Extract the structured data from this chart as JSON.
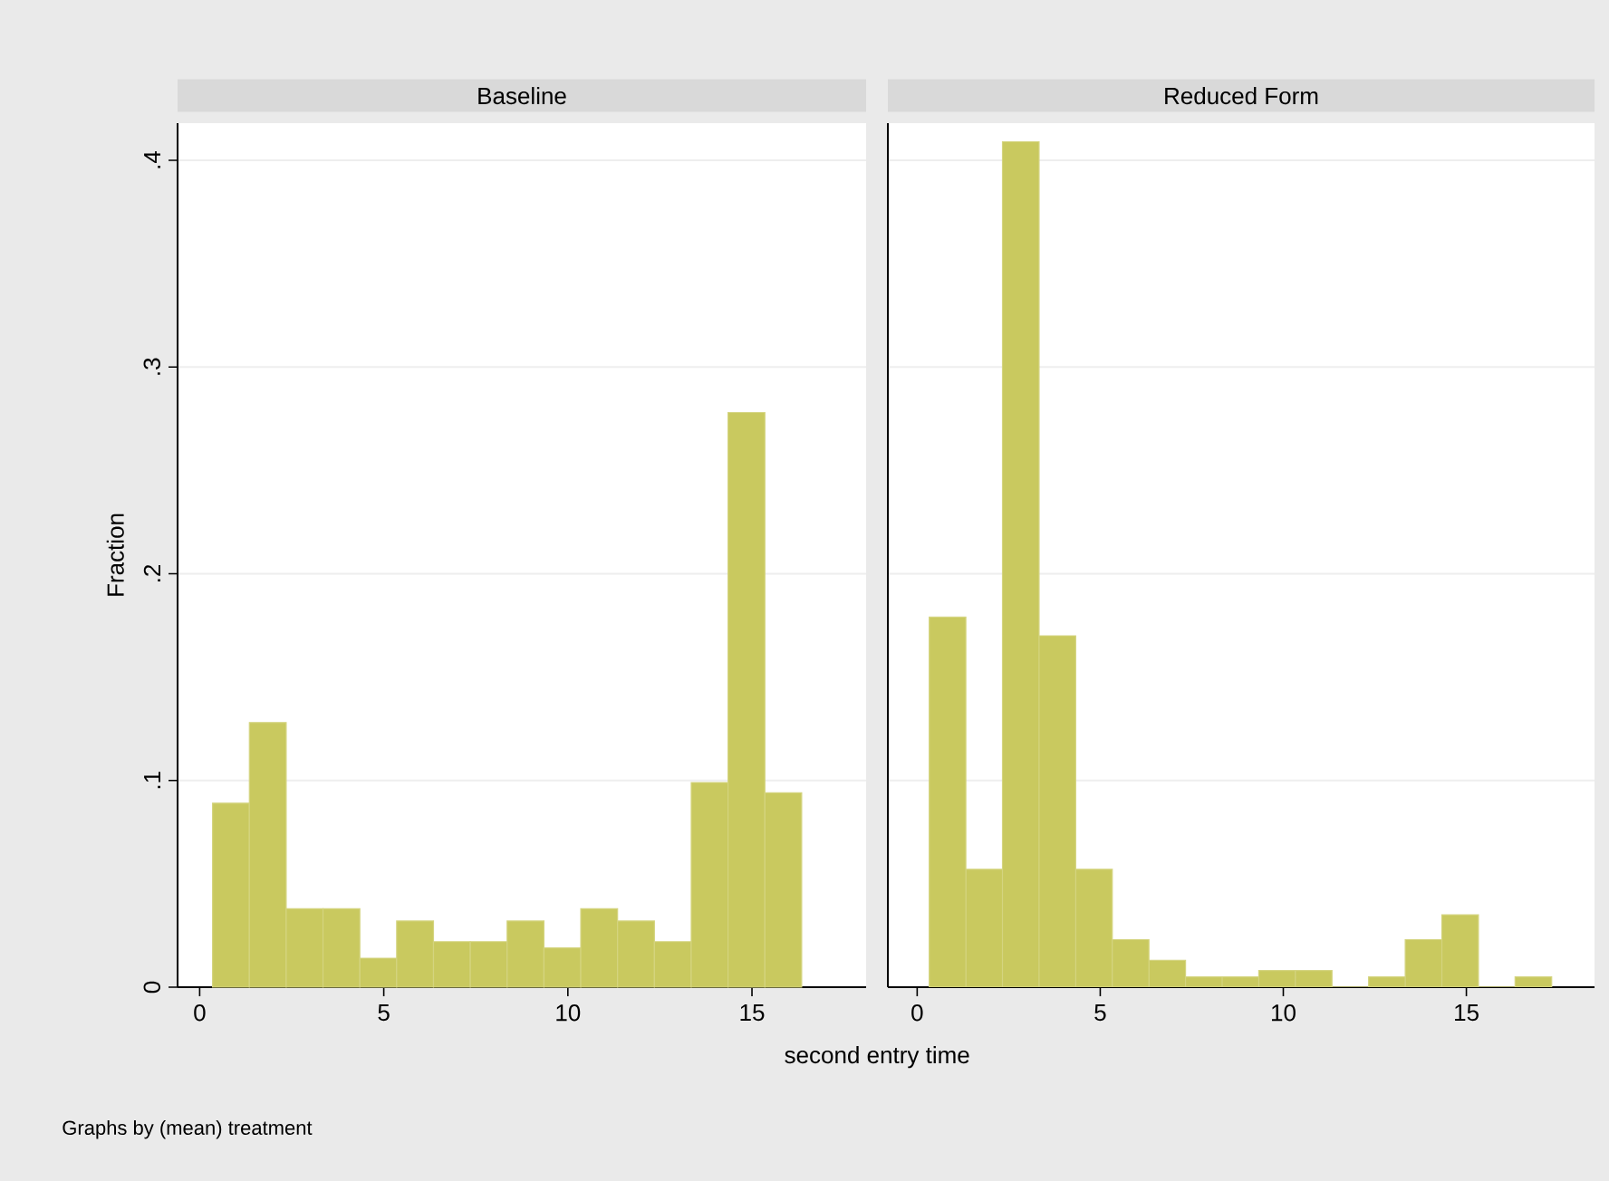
{
  "chart_data": [
    {
      "type": "histogram",
      "title": "Baseline",
      "ylabel": "Fraction",
      "xlabel": "second entry time",
      "annotations": [
        "Graphs by (mean) treatment"
      ],
      "color": "#c9c95f",
      "grid": "y",
      "bins": [
        0.35,
        1.35,
        2.35,
        3.35,
        4.35,
        5.35,
        6.35,
        7.35,
        8.35,
        9.35,
        10.35,
        11.35,
        12.35,
        13.35,
        14.35,
        15.35,
        16.35
      ],
      "values": [
        0.089,
        0.128,
        0.038,
        0.038,
        0.014,
        0.032,
        0.022,
        0.022,
        0.032,
        0.019,
        0.038,
        0.032,
        0.022,
        0.099,
        0.278,
        0.094
      ],
      "xlim": [
        -0.6,
        18.1
      ],
      "ylim": [
        0,
        0.418
      ],
      "xticks": [
        0,
        5,
        10,
        15
      ],
      "yticks": [
        0,
        {
          "value": 0.1,
          "label": ".1"
        },
        {
          "value": 0.2,
          "label": ".2"
        },
        {
          "value": 0.3,
          "label": ".3"
        },
        {
          "value": 0.4,
          "label": ".4"
        }
      ]
    },
    {
      "type": "histogram",
      "title": "Reduced Form",
      "color": "#c9c95f",
      "grid": "y",
      "tick_labels": "x",
      "bins": [
        0.33,
        1.33,
        2.33,
        3.33,
        4.33,
        5.33,
        6.33,
        7.33,
        8.33,
        9.33,
        10.33,
        11.33,
        12.33,
        13.33,
        14.33,
        15.33,
        16.33,
        17.33
      ],
      "values": [
        0.179,
        0.057,
        0.409,
        0.17,
        0.057,
        0.023,
        0.013,
        0.005,
        0.005,
        0.008,
        0.008,
        0,
        0.005,
        0.023,
        0.035,
        0,
        0.005
      ],
      "xlim": [
        -0.8,
        18.5
      ],
      "ylim": [
        0,
        0.418
      ],
      "xticks": [
        0,
        5,
        10,
        15
      ],
      "yticks": [
        0,
        0.1,
        0.2,
        0.3,
        0.4
      ]
    }
  ]
}
